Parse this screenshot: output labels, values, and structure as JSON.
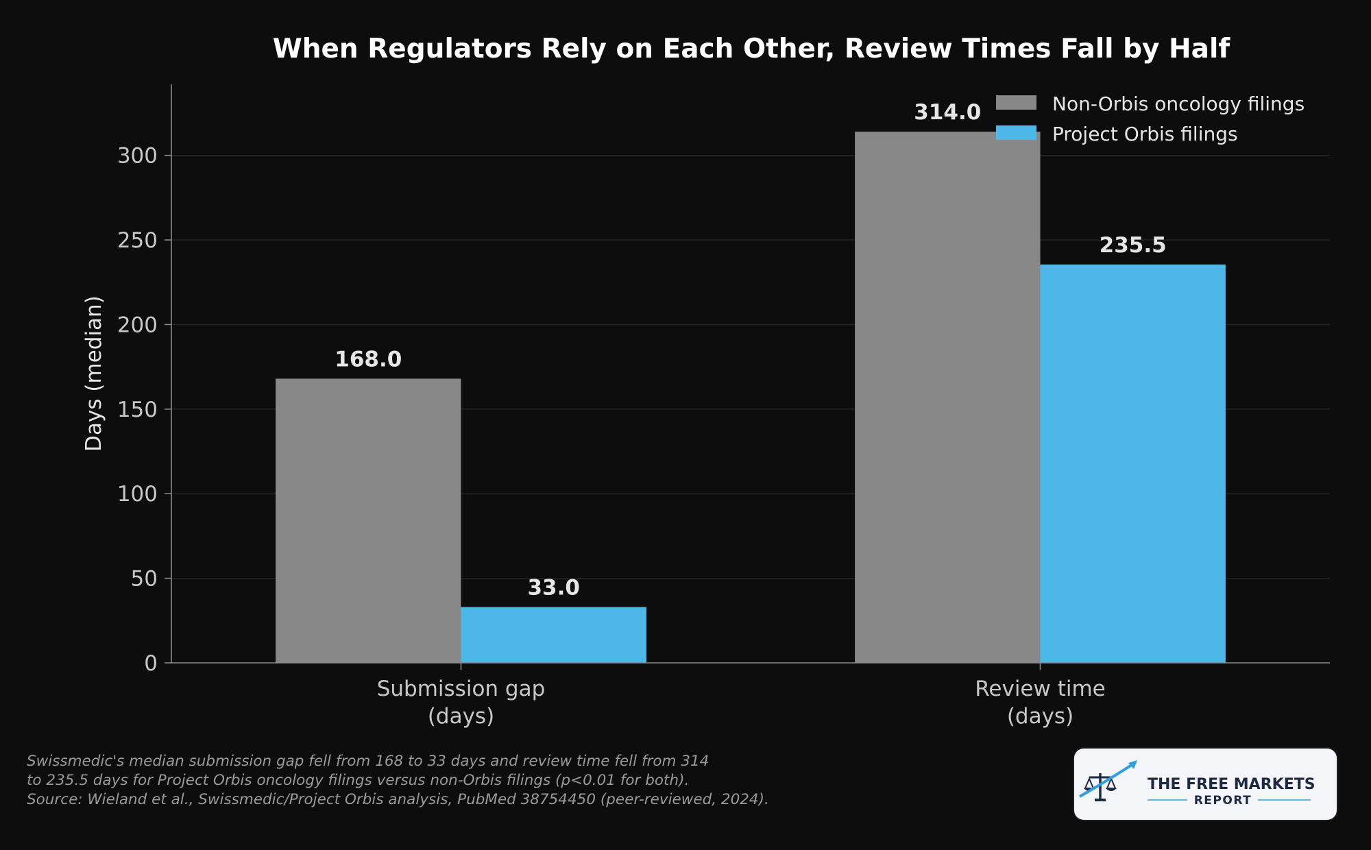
{
  "chart_data": {
    "type": "bar",
    "title": "When Regulators Rely on Each Other, Review Times Fall by Half",
    "ylabel": "Days (median)",
    "xlabel": "",
    "categories": [
      [
        "Submission gap",
        "(days)"
      ],
      [
        "Review time",
        "(days)"
      ]
    ],
    "series": [
      {
        "name": "Non-Orbis oncology filings",
        "color": "#888888",
        "values": [
          168.0,
          314.0
        ],
        "labels": [
          "168.0",
          "314.0"
        ]
      },
      {
        "name": "Project Orbis filings",
        "color": "#4db8e8",
        "values": [
          33.0,
          235.5
        ],
        "labels": [
          "33.0",
          "235.5"
        ]
      }
    ],
    "ylim": [
      0,
      342
    ],
    "yticks": [
      0,
      50,
      100,
      150,
      200,
      250,
      300
    ],
    "grid": true,
    "legend_position": "top-right"
  },
  "footnote": {
    "lines": [
      "Swissmedic's median submission gap fell from 168 to 33 days and review time fell from 314",
      "to 235.5 days for Project Orbis oncology filings versus non-Orbis filings (p<0.01 for both).",
      "Source: Wieland et al., Swissmedic/Project Orbis analysis, PubMed 38754450 (peer-reviewed, 2024)."
    ]
  },
  "logo": {
    "line1": "THE FREE MARKETS",
    "line2": "REPORT",
    "icon": "scales-of-justice-with-rising-arrow-icon"
  }
}
